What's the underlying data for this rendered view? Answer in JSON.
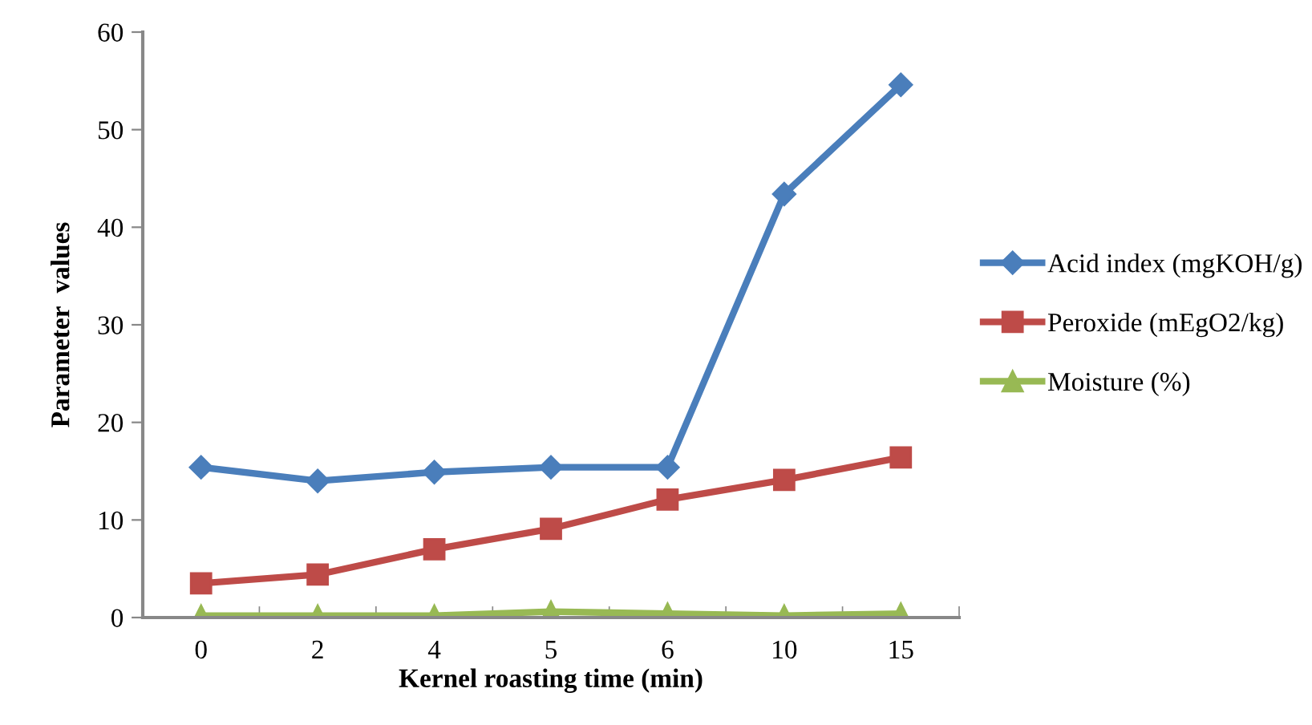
{
  "chart_data": {
    "type": "line",
    "xlabel": "Kernel roasting time (min)",
    "ylabel": "Parameter  values",
    "categories": [
      "0",
      "2",
      "4",
      "5",
      "6",
      "10",
      "15"
    ],
    "series": [
      {
        "name": "Acid index (mgKOH/g)",
        "color": "#4a7ebb",
        "marker": "diamond",
        "values": [
          15.4,
          14.0,
          14.9,
          15.4,
          15.4,
          43.4,
          54.6
        ]
      },
      {
        "name": "Peroxide (mEgO2/kg)",
        "color": "#be4b48",
        "marker": "square",
        "values": [
          3.5,
          4.4,
          7.0,
          9.1,
          12.1,
          14.1,
          16.4
        ]
      },
      {
        "name": "Moisture (%)",
        "color": "#98b954",
        "marker": "triangle",
        "values": [
          0.2,
          0.2,
          0.2,
          0.6,
          0.4,
          0.2,
          0.4
        ]
      }
    ],
    "ylim": [
      0,
      60
    ],
    "yticks": [
      0,
      10,
      20,
      30,
      40,
      50,
      60
    ],
    "grid": false,
    "legend": "right",
    "line_style": "solid"
  }
}
